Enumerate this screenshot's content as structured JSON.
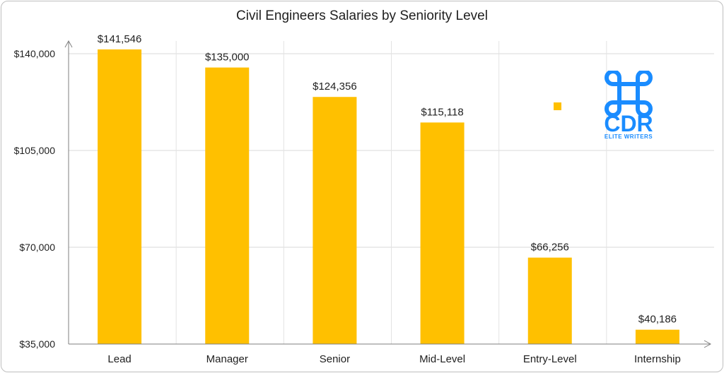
{
  "chart_data": {
    "type": "bar",
    "title": "Civil Engineers Salaries by Seniority Level",
    "categories": [
      "Lead",
      "Manager",
      "Senior",
      "Mid-Level",
      "Entry-Level",
      "Internship"
    ],
    "values": [
      141546,
      135000,
      124356,
      115118,
      66256,
      40186
    ],
    "data_labels": [
      "$141,546",
      "$135,000",
      "$124,356",
      "$115,118",
      "$66,256",
      "$40,186"
    ],
    "yticks": [
      35000,
      70000,
      105000,
      140000
    ],
    "ytick_labels": [
      "$35,000",
      "$70,000",
      "$105,000",
      "$140,000"
    ],
    "ylim": [
      35000,
      140000
    ],
    "grid": true,
    "legend": "none",
    "bar_color": "#FFC000"
  },
  "logo": {
    "text": "CDR",
    "subtitle": "ELITE WRITERS",
    "color": "#1A8CFF"
  }
}
